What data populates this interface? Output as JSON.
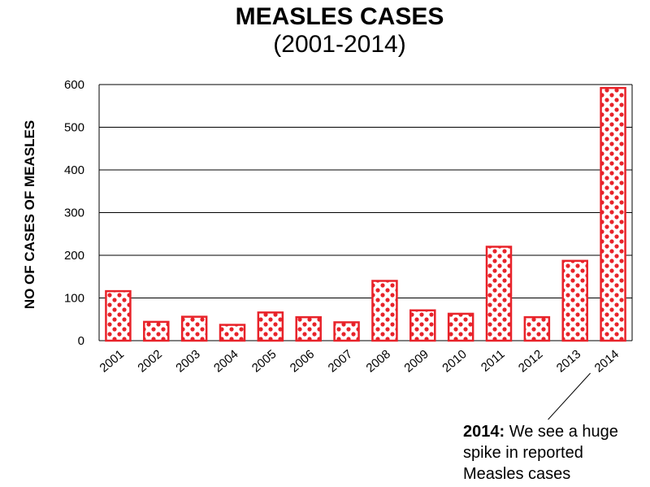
{
  "chart_data": {
    "type": "bar",
    "title": "MEASLES CASES",
    "subtitle": "(2001-2014)",
    "xlabel": "",
    "ylabel": "NO OF CASES OF MEASLES",
    "ylim": [
      0,
      600
    ],
    "yticks": [
      0,
      100,
      200,
      300,
      400,
      500,
      600
    ],
    "grid": true,
    "categories": [
      "2001",
      "2002",
      "2003",
      "2004",
      "2005",
      "2006",
      "2007",
      "2008",
      "2009",
      "2010",
      "2011",
      "2012",
      "2013",
      "2014"
    ],
    "values": [
      116,
      44,
      56,
      37,
      66,
      55,
      43,
      140,
      71,
      63,
      220,
      55,
      187,
      592
    ],
    "bar_color": "#e8232a",
    "annotation": {
      "category": "2014",
      "bold": "2014:",
      "lines": [
        " We see a huge",
        "spike in reported",
        "Measles cases"
      ]
    }
  }
}
